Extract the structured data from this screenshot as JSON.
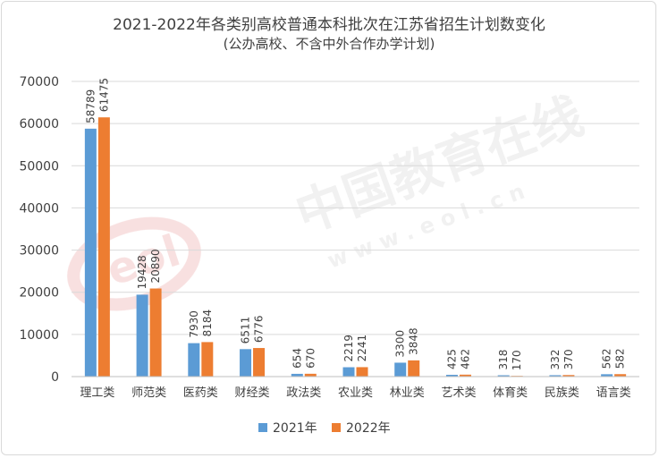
{
  "chart_data": {
    "type": "bar",
    "title": "2021-2022年各类别高校普通本科批次在江苏省招生计划数变化",
    "subtitle": "(公办高校、不含中外合作办学计划)",
    "xlabel": "",
    "ylabel": "",
    "ylim": [
      0,
      70000
    ],
    "yticks": [
      0,
      10000,
      20000,
      30000,
      40000,
      50000,
      60000,
      70000
    ],
    "grid": true,
    "legend_position": "bottom",
    "categories": [
      "理工类",
      "师范类",
      "医药类",
      "财经类",
      "政法类",
      "农业类",
      "林业类",
      "艺术类",
      "体育类",
      "民族类",
      "语言类"
    ],
    "series": [
      {
        "name": "2021年",
        "color": "#5B9BD5",
        "values": [
          58789,
          19428,
          7930,
          6511,
          654,
          2219,
          3300,
          425,
          318,
          332,
          562
        ]
      },
      {
        "name": "2022年",
        "color": "#ED7D31",
        "values": [
          61475,
          20890,
          8184,
          6776,
          670,
          2241,
          3848,
          462,
          170,
          370,
          582
        ]
      }
    ]
  },
  "watermark": {
    "text": "中国教育在线",
    "url_text": "w w w . e o l . c n",
    "logo_text": "eol"
  },
  "colors": {
    "gridline": "#d9d9d9",
    "axis": "#bfbfbf",
    "text": "#404040"
  }
}
